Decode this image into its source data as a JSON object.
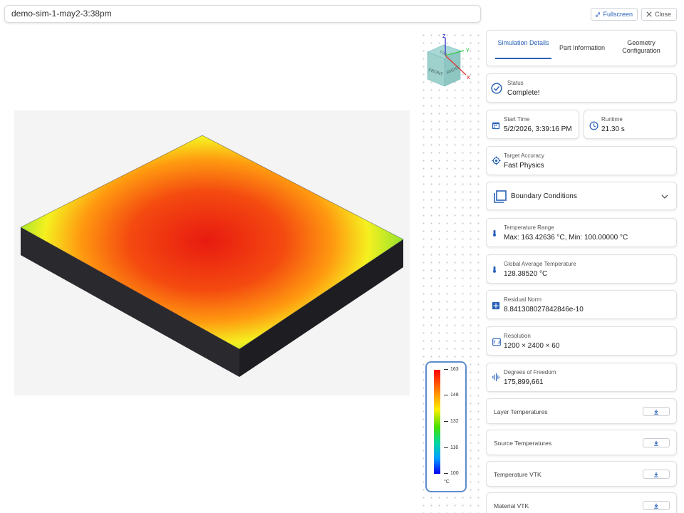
{
  "title": "demo-sim-1-may2-3:38pm",
  "toolbar": {
    "fullscreen_label": "Fullscreen",
    "close_label": "Close"
  },
  "cube": {
    "top": "TOP",
    "front": "FRONT",
    "right": "RIGHT",
    "axis_z": "Z",
    "axis_y": "Y",
    "axis_x": "X"
  },
  "legend": {
    "ticks": [
      "163",
      "148",
      "132",
      "116",
      "100"
    ],
    "unit": "°C"
  },
  "tabs": [
    "Simulation Details",
    "Part Information",
    "Geometry Configuration"
  ],
  "status": {
    "label": "Status",
    "value": "Complete!"
  },
  "start_time": {
    "label": "Start Time",
    "value": "5/2/2026, 3:39:16 PM"
  },
  "runtime": {
    "label": "Runtime",
    "value": "21.30 s"
  },
  "accuracy": {
    "label": "Target Accuracy",
    "value": "Fast Physics"
  },
  "boundary": {
    "label": "Boundary Conditions"
  },
  "temp_range": {
    "label": "Temperature Range",
    "value": "Max: 163.42636 °C, Min: 100.00000 °C"
  },
  "avg_temp": {
    "label": "Global Average Temperature",
    "value": "128.38520 °C"
  },
  "residual": {
    "label": "Residual Norm",
    "value": "8.841308027842846e-10"
  },
  "resolution": {
    "label": "Resolution",
    "value": "1200 × 2400 × 60"
  },
  "dof": {
    "label": "Degrees of Freedom",
    "value": "175,899,661"
  },
  "downloads": [
    "Layer Temperatures",
    "Source Temperatures",
    "Temperature VTK",
    "Material VTK"
  ],
  "colors": {
    "accent": "#2a62b8",
    "legend_border": "#5b8cd0"
  }
}
